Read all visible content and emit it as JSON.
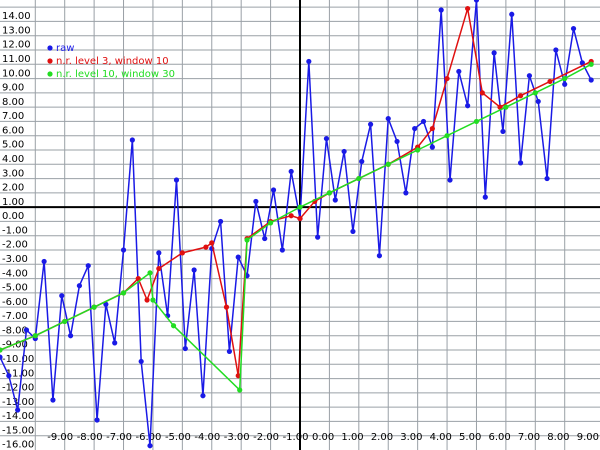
{
  "chart_data": {
    "type": "line",
    "xlim": [
      -10.2,
      10.2
    ],
    "ylim": [
      -17,
      14.5
    ],
    "grid": true,
    "legend": "top-left",
    "xticks": [
      {
        "value": -9,
        "label": "-9.00"
      },
      {
        "value": -8,
        "label": "-8.00"
      },
      {
        "value": -7,
        "label": "-7.00"
      },
      {
        "value": -6,
        "label": "-6.00"
      },
      {
        "value": -5,
        "label": "-5.00"
      },
      {
        "value": -4,
        "label": "-4.00"
      },
      {
        "value": -3,
        "label": "-3.00"
      },
      {
        "value": -2,
        "label": "-2.00"
      },
      {
        "value": -1,
        "label": "-1.00"
      },
      {
        "value": 0,
        "label": "0.00"
      },
      {
        "value": 1,
        "label": "1.00"
      },
      {
        "value": 2,
        "label": "2.00"
      },
      {
        "value": 3,
        "label": "3.00"
      },
      {
        "value": 4,
        "label": "4.00"
      },
      {
        "value": 5,
        "label": "5.00"
      },
      {
        "value": 6,
        "label": "6.00"
      },
      {
        "value": 7,
        "label": "7.00"
      },
      {
        "value": 8,
        "label": "8.00"
      },
      {
        "value": 9,
        "label": "9.00"
      }
    ],
    "yticks": [
      {
        "value": -16,
        "label": "-16.00"
      },
      {
        "value": -15,
        "label": "-15.00"
      },
      {
        "value": -14,
        "label": "-14.00"
      },
      {
        "value": -13,
        "label": "-13.00"
      },
      {
        "value": -12,
        "label": "-12.00"
      },
      {
        "value": -11,
        "label": "-11.00"
      },
      {
        "value": -10,
        "label": "-10.00"
      },
      {
        "value": -9,
        "label": "-9.00"
      },
      {
        "value": -8,
        "label": "-8.00"
      },
      {
        "value": -7,
        "label": "-7.00"
      },
      {
        "value": -6,
        "label": "-6.00"
      },
      {
        "value": -5,
        "label": "-5.00"
      },
      {
        "value": -4,
        "label": "-4.00"
      },
      {
        "value": -3,
        "label": "-3.00"
      },
      {
        "value": -2,
        "label": "-2.00"
      },
      {
        "value": -1,
        "label": "-1.00"
      },
      {
        "value": 0,
        "label": "0.00"
      },
      {
        "value": 1,
        "label": "1.00"
      },
      {
        "value": 2,
        "label": "2.00"
      },
      {
        "value": 3,
        "label": "3.00"
      },
      {
        "value": 4,
        "label": "4.00"
      },
      {
        "value": 5,
        "label": "5.00"
      },
      {
        "value": 6,
        "label": "6.00"
      },
      {
        "value": 7,
        "label": "7.00"
      },
      {
        "value": 8,
        "label": "8.00"
      },
      {
        "value": 9,
        "label": "9.00"
      },
      {
        "value": 10,
        "label": "10.00"
      },
      {
        "value": 11,
        "label": "11.00"
      },
      {
        "value": 12,
        "label": "12.00"
      },
      {
        "value": 13,
        "label": "13.00"
      },
      {
        "value": 14,
        "label": "14.00"
      }
    ],
    "series": [
      {
        "name": "raw",
        "color": "#1a1ae6",
        "x": [
          -10.2,
          -9.9,
          -9.6,
          -9.3,
          -9.0,
          -8.7,
          -8.4,
          -8.1,
          -7.8,
          -7.5,
          -7.2,
          -6.9,
          -6.6,
          -6.3,
          -6.0,
          -5.7,
          -5.4,
          -5.1,
          -4.8,
          -4.5,
          -4.2,
          -3.9,
          -3.6,
          -3.3,
          -3.0,
          -2.7,
          -2.4,
          -2.1,
          -1.8,
          -1.5,
          -1.2,
          -0.9,
          -0.6,
          -0.3,
          0.0,
          0.3,
          0.6,
          0.9,
          1.2,
          1.5,
          1.8,
          2.1,
          2.4,
          2.7,
          3.0,
          3.3,
          3.6,
          3.9,
          4.2,
          4.5,
          4.8,
          5.1,
          5.4,
          5.7,
          6.0,
          6.3,
          6.6,
          6.9,
          7.2,
          7.5,
          7.8,
          8.1,
          8.4,
          8.7,
          9.0,
          9.3,
          9.6,
          9.9
        ],
        "values": [
          -10.5,
          -11.8,
          -14.2,
          -8.6,
          -9.2,
          -3.8,
          -13.5,
          -6.2,
          -9.0,
          -5.5,
          -4.1,
          -14.9,
          -6.8,
          -9.5,
          -3.0,
          4.7,
          -10.8,
          -16.7,
          -3.2,
          -7.6,
          1.9,
          -9.9,
          -4.4,
          -13.2,
          -2.9,
          -1.0,
          -10.1,
          -3.5,
          -4.8,
          0.4,
          -2.2,
          1.2,
          -3.0,
          2.5,
          -0.8,
          10.2,
          -2.1,
          4.8,
          0.5,
          3.9,
          -1.7,
          3.2,
          5.8,
          -3.4,
          6.2,
          4.6,
          1.0,
          5.5,
          6.0,
          4.2,
          13.8,
          1.9,
          9.5,
          7.1,
          14.5,
          0.7,
          10.8,
          5.3,
          13.5,
          3.1,
          9.2,
          7.4,
          2.0,
          11.0,
          8.6,
          12.5,
          10.1,
          8.9
        ]
      },
      {
        "name": "n.r. level 3, window 10",
        "color": "#e01010",
        "x": [
          -10.2,
          -9,
          -8,
          -7,
          -6,
          -5.5,
          -5.2,
          -4.8,
          -4,
          -3.2,
          -3.0,
          -2.5,
          -2.1,
          -1.8,
          -1,
          -0.3,
          0,
          0.5,
          1,
          2,
          3,
          4,
          4.5,
          5.0,
          5.7,
          6.2,
          6.8,
          7.5,
          8.5,
          9.9
        ],
        "values": [
          -10,
          -9,
          -8,
          -7,
          -6,
          -5.0,
          -6.5,
          -4.3,
          -3.2,
          -2.8,
          -2.5,
          -7,
          -11.8,
          -2.2,
          -1.0,
          -0.6,
          -0.8,
          0.4,
          1.0,
          2.0,
          3.0,
          4.2,
          5.5,
          9.0,
          13.9,
          8,
          7,
          7.8,
          8.8,
          10.2
        ]
      },
      {
        "name": "n.r. level 10, window 30",
        "color": "#22dd22",
        "x": [
          -10.2,
          -9,
          -8,
          -7,
          -6,
          -5.1,
          -5.0,
          -4.3,
          -2.05,
          -1.8,
          -1,
          0,
          1,
          2,
          3,
          4,
          5,
          6,
          7,
          8,
          9,
          9.9
        ],
        "values": [
          -10,
          -9,
          -8,
          -7,
          -6,
          -4.6,
          -6.5,
          -8.3,
          -12.8,
          -2.3,
          -1.1,
          0,
          1,
          2,
          3,
          4,
          5,
          6,
          7,
          8,
          9,
          10
        ]
      }
    ]
  }
}
